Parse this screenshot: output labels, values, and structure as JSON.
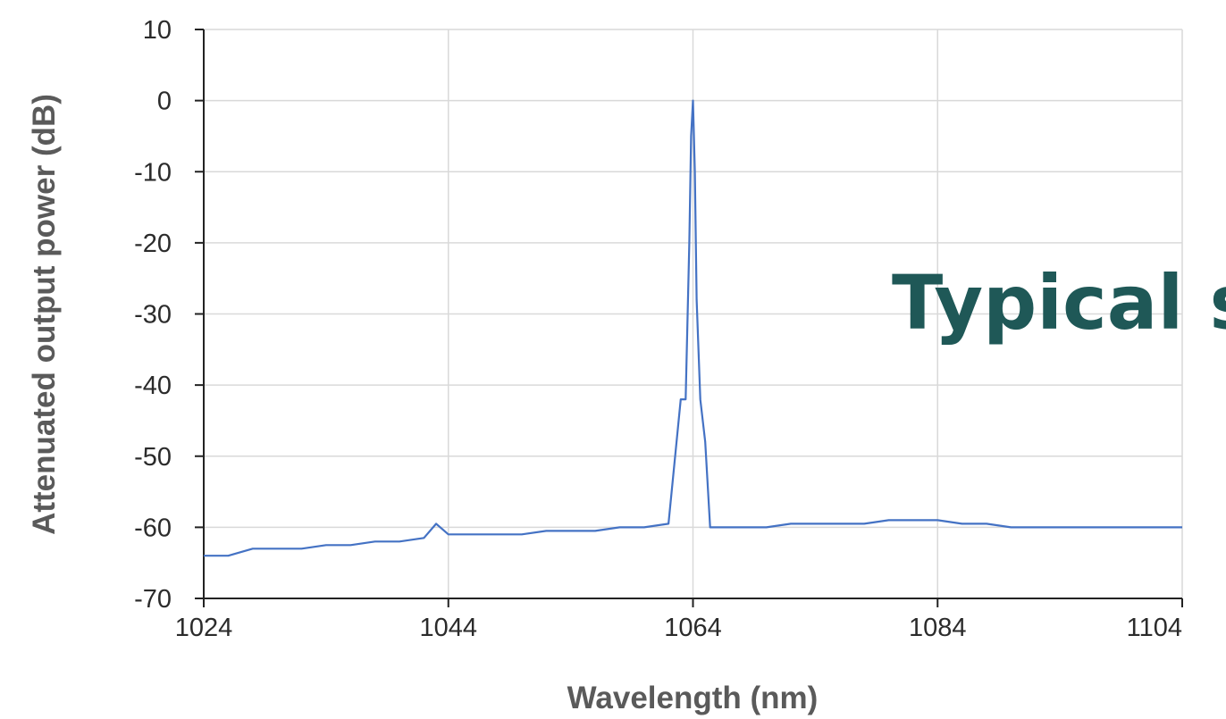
{
  "chart_data": {
    "type": "line",
    "xlabel": "Wavelength (nm)",
    "ylabel": "Attenuated output power (dB)",
    "xlim": [
      1024,
      1104
    ],
    "ylim": [
      -70,
      10
    ],
    "x_ticks": [
      "1024",
      "1044",
      "1064",
      "1084",
      "1104"
    ],
    "y_ticks": [
      "10",
      "0",
      "-10",
      "-20",
      "-30",
      "-40",
      "-50",
      "-60",
      "-70"
    ],
    "grid": true,
    "line_color": "#4472c4",
    "overlay_text": "Typical s",
    "overlay_color": "#1f5857",
    "series": [
      {
        "x": [
          1024,
          1026,
          1028,
          1030,
          1032,
          1034,
          1036,
          1038,
          1040,
          1042,
          1043,
          1044,
          1046,
          1048,
          1050,
          1052,
          1054,
          1056,
          1058,
          1060,
          1062,
          1063,
          1063.4,
          1063.7,
          1063.85,
          1064,
          1064.15,
          1064.3,
          1064.6,
          1065,
          1065.4,
          1066,
          1068,
          1070,
          1072,
          1074,
          1076,
          1078,
          1080,
          1082,
          1084,
          1086,
          1088,
          1090,
          1092,
          1094,
          1096,
          1098,
          1100,
          1102,
          1104
        ],
        "y": [
          -64,
          -64,
          -63,
          -63,
          -63,
          -62.5,
          -62.5,
          -62,
          -62,
          -61.5,
          -59.5,
          -61,
          -61,
          -61,
          -61,
          -60.5,
          -60.5,
          -60.5,
          -60,
          -60,
          -59.5,
          -42,
          -42,
          -20,
          -5,
          0,
          -10,
          -28,
          -42,
          -48,
          -60,
          -60,
          -60,
          -60,
          -59.5,
          -59.5,
          -59.5,
          -59.5,
          -59,
          -59,
          -59,
          -59.5,
          -59.5,
          -60,
          -60,
          -60,
          -60,
          -60,
          -60,
          -60,
          -60
        ]
      }
    ]
  }
}
